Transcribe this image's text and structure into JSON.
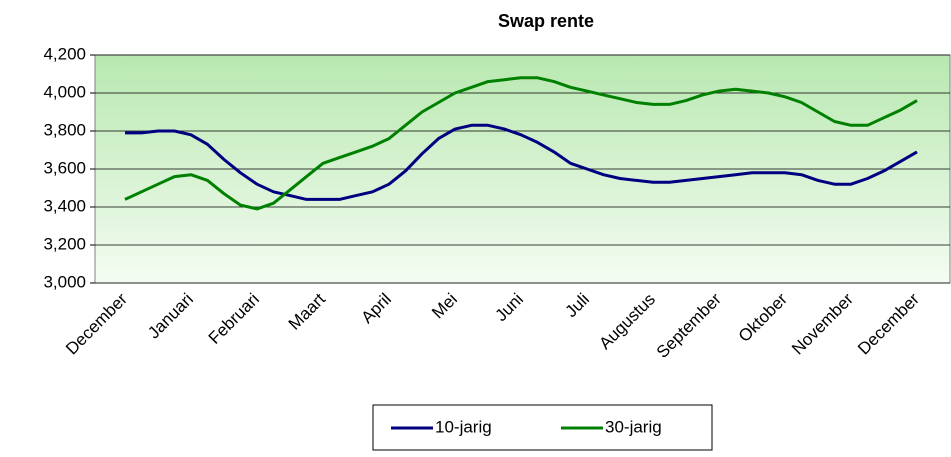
{
  "chart_data": {
    "type": "line",
    "title": "Swap rente",
    "categories": [
      "December",
      null,
      null,
      null,
      "Januari",
      null,
      null,
      null,
      "Februari",
      null,
      null,
      null,
      "Maart",
      null,
      null,
      null,
      "April",
      null,
      null,
      null,
      "Mei",
      null,
      null,
      null,
      "Juni",
      null,
      null,
      null,
      "Juli",
      null,
      null,
      null,
      "Augustus",
      null,
      null,
      null,
      "September",
      null,
      null,
      null,
      "Oktober",
      null,
      null,
      null,
      "November",
      null,
      null,
      null,
      "December"
    ],
    "series": [
      {
        "name": "10-jarig",
        "color": "#000080",
        "values": [
          3790,
          3790,
          3800,
          3800,
          3780,
          3730,
          3650,
          3580,
          3520,
          3480,
          3460,
          3440,
          3440,
          3440,
          3460,
          3480,
          3520,
          3590,
          3680,
          3760,
          3810,
          3830,
          3830,
          3810,
          3780,
          3740,
          3690,
          3630,
          3600,
          3570,
          3550,
          3540,
          3530,
          3530,
          3540,
          3550,
          3560,
          3570,
          3580,
          3580,
          3580,
          3570,
          3540,
          3520,
          3520,
          3550,
          3590,
          3640,
          3690
        ]
      },
      {
        "name": "30-jarig",
        "color": "#008000",
        "values": [
          3440,
          3480,
          3520,
          3560,
          3570,
          3540,
          3470,
          3410,
          3390,
          3420,
          3490,
          3560,
          3630,
          3660,
          3690,
          3720,
          3760,
          3830,
          3900,
          3950,
          4000,
          4030,
          4060,
          4070,
          4080,
          4080,
          4060,
          4030,
          4010,
          3990,
          3970,
          3950,
          3940,
          3940,
          3960,
          3990,
          4010,
          4020,
          4010,
          4000,
          3980,
          3950,
          3900,
          3850,
          3830,
          3830,
          3870,
          3910,
          3960
        ]
      }
    ],
    "ylim": [
      3000,
      4200
    ],
    "yticks": [
      {
        "value": 3000,
        "label": "3,000"
      },
      {
        "value": 3200,
        "label": "3,200"
      },
      {
        "value": 3400,
        "label": "3,400"
      },
      {
        "value": 3600,
        "label": "3,600"
      },
      {
        "value": 3800,
        "label": "3,800"
      },
      {
        "value": 4000,
        "label": "4,000"
      },
      {
        "value": 4200,
        "label": "4,200"
      }
    ],
    "grid": true,
    "legend": "bottom"
  }
}
